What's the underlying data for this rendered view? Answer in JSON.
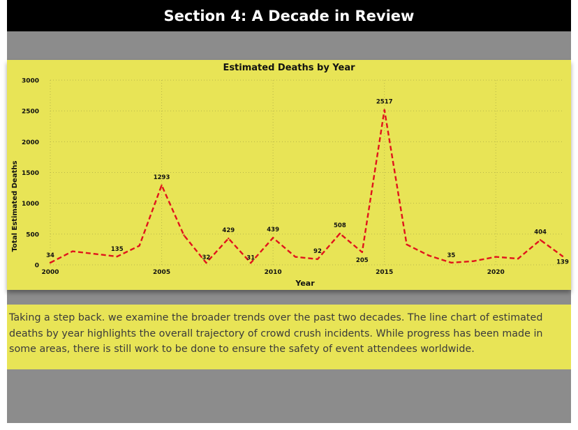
{
  "page": {
    "title": "Section 4: A Decade in Review",
    "paragraph": "Taking a step back. we examine the broader trends over the past two decades. The line chart of estimated deaths by year highlights the overall trajectory of crowd crush incidents. While progress has been made in some areas, there is still work to be done to ensure the safety of event attendees worldwide."
  },
  "colors": {
    "header_bg": "#000000",
    "panel_bg": "#e8e456",
    "frame_bg": "#8c8c8c",
    "line": "#e0141c"
  },
  "chart_data": {
    "type": "line",
    "title": "Estimated Deaths by Year",
    "xlabel": "Year",
    "ylabel": "Total Estimated Deaths",
    "xlim": [
      2000,
      2023
    ],
    "ylim": [
      0,
      3000
    ],
    "xticks": [
      "2000",
      "2005",
      "2010",
      "2015",
      "2020"
    ],
    "yticks": [
      "0",
      "500",
      "1000",
      "1500",
      "2000",
      "2500",
      "3000"
    ],
    "grid": true,
    "line_style": "dashed",
    "x": [
      2000,
      2001,
      2003,
      2004,
      2005,
      2006,
      2007,
      2008,
      2009,
      2010,
      2011,
      2012,
      2013,
      2014,
      2015,
      2016,
      2017,
      2018,
      2019,
      2020,
      2021,
      2022,
      2023
    ],
    "values": [
      34,
      220,
      135,
      310,
      1293,
      480,
      32,
      429,
      31,
      439,
      130,
      92,
      508,
      205,
      2517,
      330,
      150,
      35,
      60,
      130,
      100,
      404,
      139
    ],
    "data_labels": [
      {
        "x": 2000,
        "text": "34"
      },
      {
        "x": 2003,
        "text": "135"
      },
      {
        "x": 2005,
        "text": "1293"
      },
      {
        "x": 2007,
        "text": "32"
      },
      {
        "x": 2008,
        "text": "429"
      },
      {
        "x": 2009,
        "text": "31"
      },
      {
        "x": 2010,
        "text": "439"
      },
      {
        "x": 2012,
        "text": "92"
      },
      {
        "x": 2013,
        "text": "508"
      },
      {
        "x": 2014,
        "text": "205"
      },
      {
        "x": 2015,
        "text": "2517"
      },
      {
        "x": 2018,
        "text": "35"
      },
      {
        "x": 2022,
        "text": "404"
      },
      {
        "x": 2023,
        "text": "139"
      }
    ]
  }
}
